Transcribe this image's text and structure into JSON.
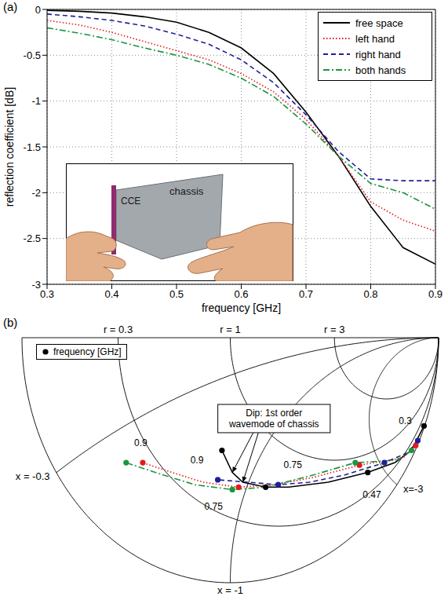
{
  "chart_data": [
    {
      "type": "line",
      "panel": "(a)",
      "x_label": "frequency [GHz]",
      "y_label": "reflection coefficient [dB]",
      "x": [
        0.3,
        0.35,
        0.4,
        0.45,
        0.5,
        0.55,
        0.6,
        0.65,
        0.7,
        0.75,
        0.8,
        0.85,
        0.9
      ],
      "xlim": [
        0.3,
        0.9
      ],
      "xticks": [
        0.3,
        0.4,
        0.5,
        0.6,
        0.7,
        0.8,
        0.9
      ],
      "ylim": [
        -3,
        0
      ],
      "yticks": [
        -3,
        -2.5,
        -2,
        -1.5,
        -1,
        -0.5,
        0
      ],
      "grid": true,
      "legend": "upper right",
      "series": [
        {
          "name": "free space",
          "color": "#000000",
          "line_style": "solid",
          "values": [
            -0.01,
            -0.02,
            -0.04,
            -0.08,
            -0.14,
            -0.25,
            -0.42,
            -0.7,
            -1.12,
            -1.6,
            -2.15,
            -2.6,
            -2.78
          ]
        },
        {
          "name": "left hand",
          "color": "#e31a1c",
          "line_style": "dotted",
          "values": [
            -0.12,
            -0.17,
            -0.25,
            -0.35,
            -0.45,
            -0.55,
            -0.7,
            -0.9,
            -1.2,
            -1.6,
            -2.1,
            -2.3,
            -2.42
          ]
        },
        {
          "name": "right hand",
          "color": "#1f1f99",
          "line_style": "dashed",
          "values": [
            -0.05,
            -0.08,
            -0.12,
            -0.18,
            -0.27,
            -0.38,
            -0.55,
            -0.8,
            -1.15,
            -1.55,
            -1.85,
            -1.87,
            -1.87
          ]
        },
        {
          "name": "both hands",
          "color": "#1a9641",
          "line_style": "dashdot",
          "values": [
            -0.2,
            -0.26,
            -0.33,
            -0.42,
            -0.5,
            -0.6,
            -0.75,
            -0.95,
            -1.25,
            -1.6,
            -1.9,
            -2.0,
            -2.18
          ]
        }
      ],
      "inset_labels": [
        "CCE",
        "chassis"
      ]
    },
    {
      "type": "smith",
      "panel": "(b)",
      "xlim": [
        -1,
        1
      ],
      "ylim": [
        -1,
        0
      ],
      "tick_labels": false,
      "legend": "upper left",
      "legend_label": "frequency [GHz]",
      "r_circles": [
        {
          "value": 0.3,
          "label": "r = 0.3"
        },
        {
          "value": 1,
          "label": "r = 1"
        },
        {
          "value": 3,
          "label": "r = 3"
        }
      ],
      "x_arcs": [
        {
          "value": -0.3,
          "label": "x = -0.3"
        },
        {
          "value": -1,
          "label": "x = -1"
        },
        {
          "value": -3,
          "label": "x=-3"
        }
      ],
      "series": [
        {
          "name": "free space",
          "color": "#000000",
          "line_style": "solid",
          "marker": "circle",
          "x": [
            0.93,
            0.87,
            0.79,
            0.66,
            0.47,
            0.28,
            0.17,
            0.06,
            0.01,
            -0.04
          ],
          "values": [
            -0.36,
            -0.46,
            -0.51,
            -0.55,
            -0.59,
            -0.61,
            -0.61,
            -0.59,
            -0.55,
            -0.46
          ],
          "marker_x": [
            0.93,
            0.66,
            0.17,
            -0.04
          ],
          "marker_values": [
            -0.36,
            -0.55,
            -0.61,
            -0.46
          ]
        },
        {
          "name": "left hand",
          "color": "#e31a1c",
          "line_style": "dotted",
          "marker": "circle",
          "x": [
            0.89,
            0.83,
            0.62,
            0.4,
            0.21,
            0.04,
            -0.13,
            -0.28,
            -0.42
          ],
          "values": [
            -0.44,
            -0.49,
            -0.52,
            -0.57,
            -0.6,
            -0.61,
            -0.59,
            -0.55,
            -0.51
          ],
          "marker_x": [
            0.89,
            0.62,
            0.04,
            -0.42
          ],
          "marker_values": [
            -0.44,
            -0.52,
            -0.61,
            -0.51
          ]
        },
        {
          "name": "right hand",
          "color": "#1f1f99",
          "line_style": "dashed",
          "marker": "circle",
          "x": [
            0.9,
            0.85,
            0.74,
            0.55,
            0.38,
            0.23,
            0.09,
            -0.06
          ],
          "values": [
            -0.42,
            -0.47,
            -0.51,
            -0.56,
            -0.59,
            -0.6,
            -0.59,
            -0.58
          ],
          "marker_x": [
            0.9,
            0.74,
            0.23,
            -0.06
          ],
          "marker_values": [
            -0.42,
            -0.51,
            -0.6,
            -0.58
          ]
        },
        {
          "name": "both hands",
          "color": "#1a9641",
          "line_style": "dashdot",
          "marker": "circle",
          "x": [
            0.87,
            0.8,
            0.6,
            0.4,
            0.17,
            0.01,
            -0.17,
            -0.36,
            -0.5
          ],
          "values": [
            -0.46,
            -0.5,
            -0.51,
            -0.56,
            -0.61,
            -0.62,
            -0.6,
            -0.55,
            -0.51
          ],
          "marker_x": [
            0.87,
            0.6,
            0.01,
            -0.5
          ],
          "marker_values": [
            -0.46,
            -0.51,
            -0.62,
            -0.51
          ]
        }
      ],
      "annotations": [
        {
          "text": "0.3",
          "x": 0.84,
          "y": -0.34
        },
        {
          "text": "0.47",
          "x": 0.68,
          "y": -0.64
        },
        {
          "text": "0.75",
          "x": 0.3,
          "y": -0.52
        },
        {
          "text": "0.75",
          "x": -0.08,
          "y": -0.69
        },
        {
          "text": "0.9",
          "x": -0.16,
          "y": -0.5
        },
        {
          "text": "0.9",
          "x": -0.43,
          "y": -0.43
        },
        {
          "text": "Dip: 1st order wavemode of chassis",
          "x": 0.21,
          "y": -0.33,
          "arrows": [
            {
              "x": 0.01,
              "y": -0.55
            },
            {
              "x": 0.06,
              "y": -0.59
            }
          ]
        }
      ]
    }
  ]
}
